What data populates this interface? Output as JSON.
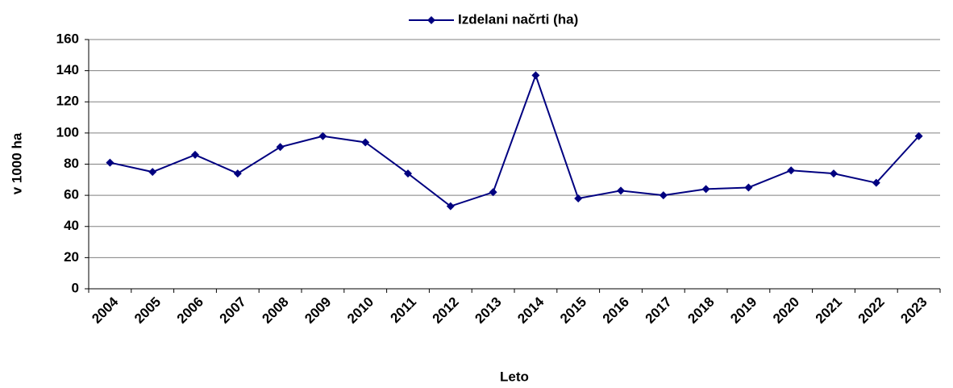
{
  "chart_data": {
    "type": "line",
    "x_label": "Leto",
    "y_label": "v 1000 ha",
    "categories": [
      "2004",
      "2005",
      "2006",
      "2007",
      "2008",
      "2009",
      "2010",
      "2011",
      "2012",
      "2013",
      "2014",
      "2015",
      "2016",
      "2017",
      "2018",
      "2019",
      "2020",
      "2021",
      "2022",
      "2023"
    ],
    "series": [
      {
        "name": "Izdelani načrti (ha)",
        "color": "#000080",
        "values": [
          81,
          75,
          86,
          74,
          91,
          98,
          94,
          74,
          53,
          62,
          137,
          58,
          63,
          60,
          64,
          65,
          76,
          74,
          68,
          98
        ]
      }
    ],
    "ylim": [
      0,
      160
    ],
    "yticks": [
      0,
      20,
      40,
      60,
      80,
      100,
      120,
      140,
      160
    ],
    "grid": true,
    "legend": "top"
  }
}
